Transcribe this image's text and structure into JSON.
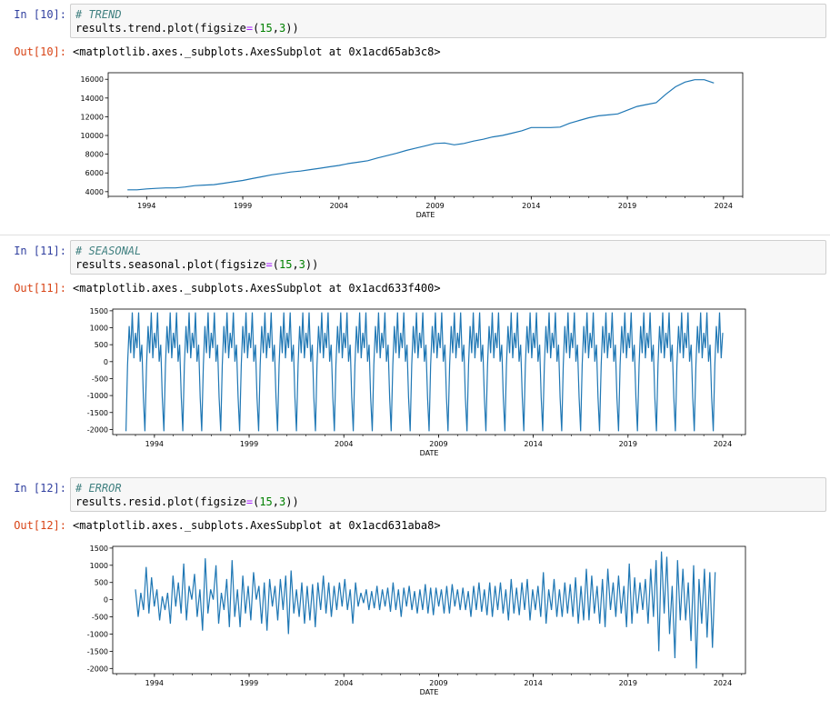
{
  "cells": [
    {
      "in_prompt": "In [10]:",
      "code_comment": "# TREND",
      "code_call": "results.trend.plot(figsize",
      "code_eq": "=",
      "code_open": "(",
      "code_n1": "15",
      "code_comma": ",",
      "code_n2": "3",
      "code_close": "))",
      "out_prompt": "Out[10]:",
      "out_text": "<matplotlib.axes._subplots.AxesSubplot at 0x1acd65ab3c8>"
    },
    {
      "in_prompt": "In [11]:",
      "code_comment": "# SEASONAL",
      "code_call": "results.seasonal.plot(figsize",
      "code_eq": "=",
      "code_open": "(",
      "code_n1": "15",
      "code_comma": ",",
      "code_n2": "3",
      "code_close": "))",
      "out_prompt": "Out[11]:",
      "out_text": "<matplotlib.axes._subplots.AxesSubplot at 0x1acd633f400>"
    },
    {
      "in_prompt": "In [12]:",
      "code_comment": "# ERROR",
      "code_call": "results.resid.plot(figsize",
      "code_eq": "=",
      "code_open": "(",
      "code_n1": "15",
      "code_comma": ",",
      "code_n2": "3",
      "code_close": "))",
      "out_prompt": "Out[12]:",
      "out_text": "<matplotlib.axes._subplots.AxesSubplot at 0x1acd631aba8>"
    }
  ],
  "chart_data": [
    {
      "type": "line",
      "xlabel": "DATE",
      "ylabel": "",
      "x_ticks": [
        "1994",
        "1999",
        "2004",
        "2009",
        "2014",
        "2019",
        "2024"
      ],
      "y_ticks": [
        "4000",
        "6000",
        "8000",
        "10000",
        "12000",
        "14000",
        "16000"
      ],
      "xlim": [
        1992.0,
        2025.0
      ],
      "ylim": [
        3500,
        16700
      ],
      "line_color": "#1f77b4",
      "series": [
        {
          "x": [
            1993.0,
            1993.5,
            1994.0,
            1994.5,
            1995.0,
            1995.5,
            1996.0,
            1996.5,
            1997.0,
            1997.5,
            1998.0,
            1998.5,
            1999.0,
            1999.5,
            2000.0,
            2000.5,
            2001.0,
            2001.5,
            2002.0,
            2002.5,
            2003.0,
            2003.5,
            2004.0,
            2004.5,
            2005.0,
            2005.5,
            2006.0,
            2006.5,
            2007.0,
            2007.5,
            2008.0,
            2008.5,
            2009.0,
            2009.5,
            2010.0,
            2010.5,
            2011.0,
            2011.5,
            2012.0,
            2012.5,
            2013.0,
            2013.5,
            2014.0,
            2014.5,
            2015.0,
            2015.5,
            2016.0,
            2016.5,
            2017.0,
            2017.5,
            2018.0,
            2018.5,
            2019.0,
            2019.5,
            2020.0,
            2020.5,
            2021.0,
            2021.5,
            2022.0,
            2022.5,
            2023.0,
            2023.5
          ],
          "values": [
            4200,
            4200,
            4300,
            4350,
            4400,
            4400,
            4500,
            4650,
            4700,
            4750,
            4900,
            5050,
            5200,
            5400,
            5600,
            5800,
            5950,
            6100,
            6200,
            6350,
            6500,
            6650,
            6800,
            7000,
            7150,
            7300,
            7600,
            7850,
            8100,
            8400,
            8650,
            8900,
            9150,
            9200,
            9000,
            9150,
            9400,
            9600,
            9850,
            10000,
            10250,
            10500,
            10850,
            10850,
            10850,
            10900,
            11300,
            11600,
            11900,
            12100,
            12200,
            12300,
            12700,
            13100,
            13300,
            13500,
            14400,
            15200,
            15700,
            15950,
            15950,
            15600
          ]
        }
      ]
    },
    {
      "type": "line",
      "xlabel": "DATE",
      "ylabel": "",
      "x_ticks": [
        "1994",
        "1999",
        "2004",
        "2009",
        "2014",
        "2019",
        "2024"
      ],
      "y_ticks": [
        "1500",
        "1000",
        "500",
        "0",
        "-500",
        "-1000",
        "-1500",
        "-2000"
      ],
      "xlim": [
        1991.8,
        2025.2
      ],
      "ylim": [
        -2150,
        1550
      ],
      "line_color": "#1f77b4",
      "series": [
        {
          "seasonal_cycle": [
            -2050,
            -100,
            1050,
            250,
            1450,
            100,
            850,
            400,
            1450,
            0,
            500,
            -1050
          ],
          "start": 1992.5,
          "end": 2024.0
        }
      ]
    },
    {
      "type": "line",
      "xlabel": "DATE",
      "ylabel": "",
      "x_ticks": [
        "1994",
        "1999",
        "2004",
        "2009",
        "2014",
        "2019",
        "2024"
      ],
      "y_ticks": [
        "1500",
        "1000",
        "500",
        "0",
        "-500",
        "-1000",
        "-1500",
        "-2000"
      ],
      "xlim": [
        1991.8,
        2025.2
      ],
      "ylim": [
        -2150,
        1550
      ],
      "line_color": "#1f77b4",
      "series": [
        {
          "start": 1993.0,
          "end": 2023.6,
          "values": [
            300,
            -500,
            200,
            -300,
            950,
            -400,
            650,
            -200,
            300,
            -600,
            100,
            -300,
            200,
            -700,
            700,
            -200,
            500,
            -400,
            1050,
            -600,
            400,
            0,
            750,
            -500,
            300,
            -900,
            1200,
            -400,
            300,
            0,
            1000,
            -700,
            200,
            -300,
            600,
            -800,
            1150,
            -500,
            300,
            -800,
            700,
            -400,
            400,
            -600,
            800,
            0,
            400,
            -700,
            500,
            -900,
            600,
            -200,
            400,
            -600,
            600,
            -300,
            700,
            -1000,
            850,
            -400,
            300,
            -500,
            500,
            -700,
            400,
            -600,
            450,
            -800,
            500,
            -300,
            700,
            -400,
            500,
            -500,
            400,
            -300,
            500,
            -200,
            600,
            -300,
            300,
            -700,
            500,
            -200,
            200,
            -100,
            300,
            -300,
            250,
            -250,
            400,
            -300,
            300,
            -200,
            350,
            -350,
            500,
            -300,
            300,
            -500,
            350,
            -200,
            400,
            -300,
            250,
            -400,
            300,
            -300,
            450,
            -400,
            350,
            -450,
            350,
            -200,
            300,
            -400,
            400,
            -400,
            450,
            -200,
            300,
            -300,
            350,
            -300,
            250,
            -500,
            400,
            -300,
            500,
            -350,
            300,
            -450,
            500,
            -500,
            400,
            -300,
            500,
            -400,
            300,
            -600,
            600,
            -400,
            350,
            -450,
            500,
            -300,
            600,
            -600,
            300,
            -300,
            400,
            -500,
            800,
            -700,
            300,
            -300,
            600,
            -500,
            300,
            -500,
            500,
            -400,
            450,
            -500,
            650,
            -700,
            400,
            -600,
            900,
            -600,
            700,
            -400,
            400,
            -700,
            600,
            -800,
            900,
            -300,
            500,
            -500,
            700,
            -400,
            400,
            -800,
            1050,
            -700,
            650,
            -400,
            500,
            -300,
            600,
            -700,
            900,
            -500,
            1150,
            -1500,
            1400,
            -400,
            1250,
            -1000,
            400,
            -1700,
            1150,
            -600,
            900,
            -600,
            500,
            -1200,
            1000,
            -2000,
            600,
            -700,
            900,
            -1100,
            800,
            -1400,
            800
          ]
        }
      ]
    }
  ]
}
